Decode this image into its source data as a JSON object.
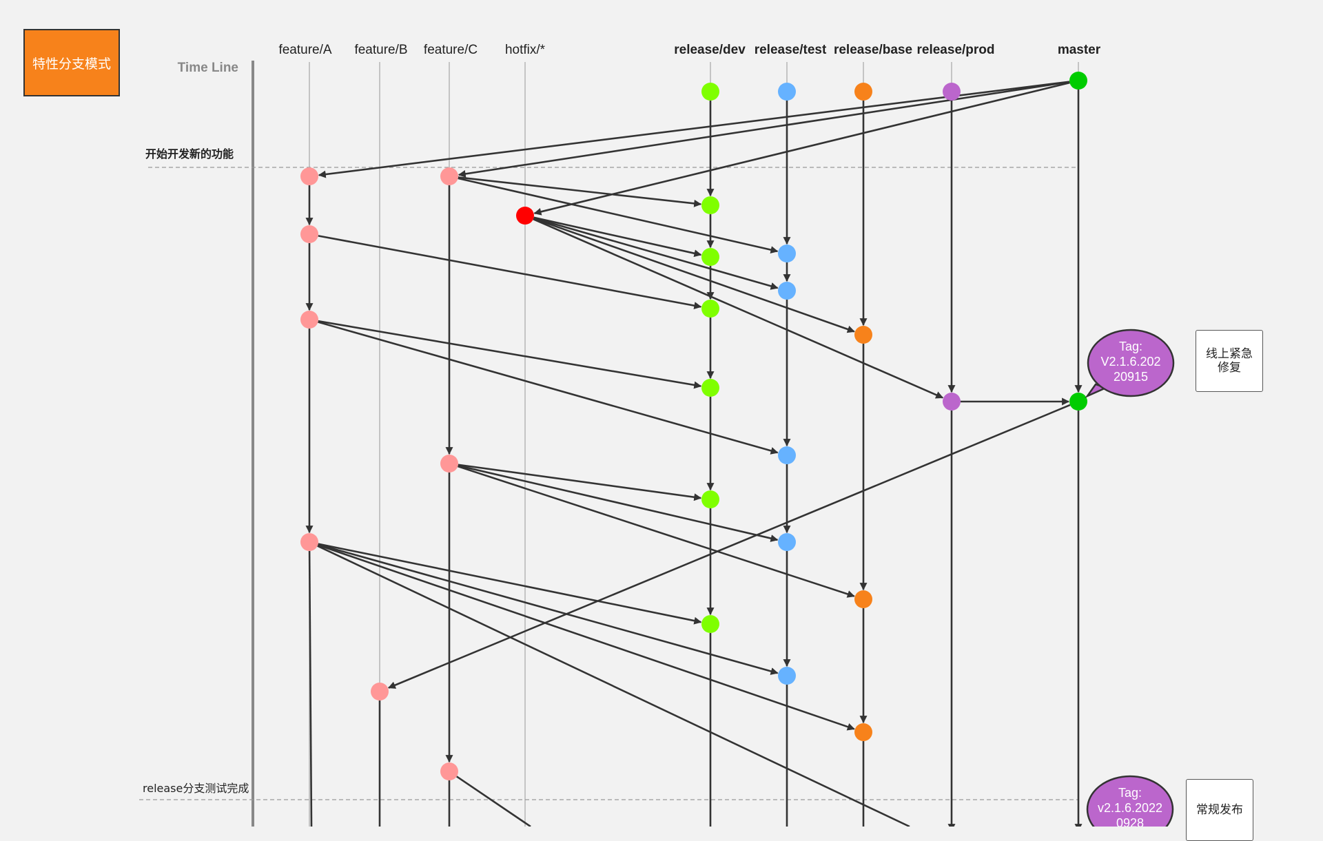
{
  "title": "特性分支模式",
  "timeline_label": "Time Line",
  "branches": [
    {
      "id": "featureA",
      "label": "feature/A",
      "bold": false
    },
    {
      "id": "featureB",
      "label": "feature/B",
      "bold": false
    },
    {
      "id": "featureC",
      "label": "feature/C",
      "bold": false
    },
    {
      "id": "hotfix",
      "label": "hotfix/*",
      "bold": false
    },
    {
      "id": "dev",
      "label": "release/dev",
      "bold": true
    },
    {
      "id": "test",
      "label": "release/test",
      "bold": true
    },
    {
      "id": "base",
      "label": "release/base",
      "bold": true
    },
    {
      "id": "prod",
      "label": "release/prod",
      "bold": true
    },
    {
      "id": "master",
      "label": "master",
      "bold": true
    }
  ],
  "colors": {
    "feature": "#ff9797",
    "hotfix": "#ff0000",
    "dev": "#7fff00",
    "test": "#66b2ff",
    "base": "#f7821b",
    "prod": "#bb66cc",
    "master": "#00cc00",
    "tag": "#bb66cc",
    "edge": "#333333",
    "title_bg": "#f7821b"
  },
  "phases": [
    {
      "label": "开始开发新的功能"
    },
    {
      "label": "release分支测试完成"
    }
  ],
  "tags": [
    {
      "text": "Tag:\nV2.1.6.202\n20915"
    },
    {
      "text": "Tag:\nv2.1.6.2022\n0928"
    }
  ],
  "notes": [
    {
      "text": "线上紧急\n修复"
    },
    {
      "text": "常规发布"
    }
  ]
}
